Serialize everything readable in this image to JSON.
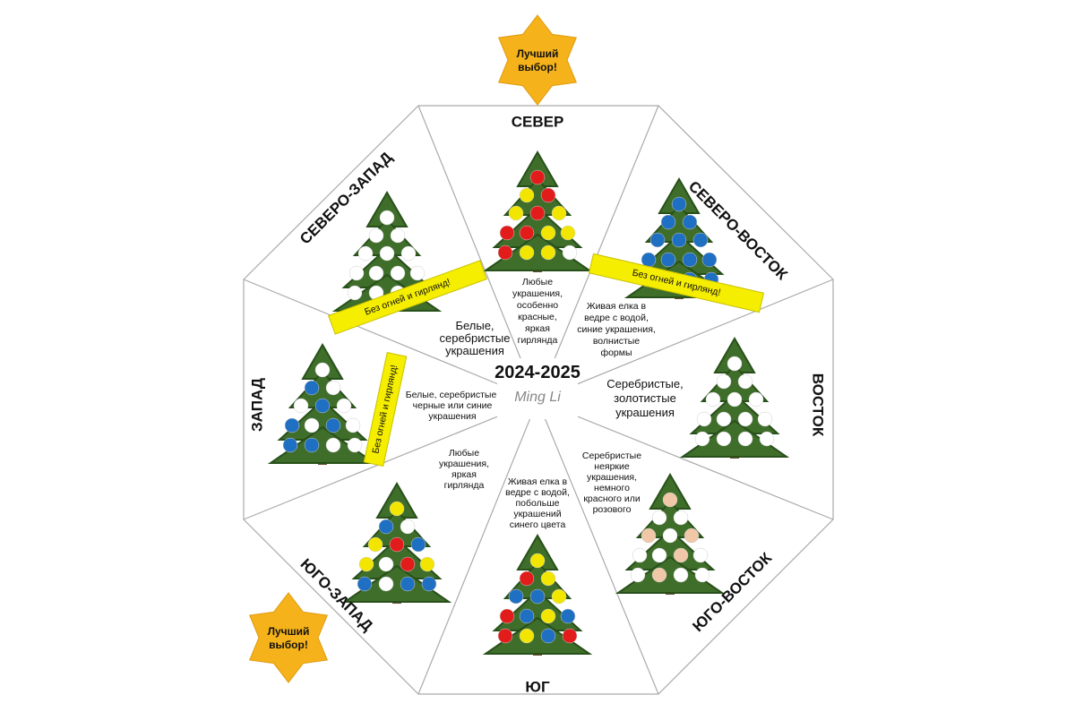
{
  "center": {
    "years": "2024-2025",
    "logo": "Ming Li"
  },
  "badges": [
    "Лучший выбор!",
    "Лучший выбор!"
  ],
  "banners": [
    "Без огней и гирлянд!",
    "Без огней и гирлянд!",
    "Без огней и гирлянд!"
  ],
  "sectors": [
    {
      "direction": "СЕВЕР",
      "description": [
        "Любые",
        "украшения,",
        "особенно",
        "красные,",
        "яркая",
        "гирлянда"
      ]
    },
    {
      "direction": "СЕВЕРО-ВОСТОК",
      "description": [
        "Живая елка в",
        "ведре с водой,",
        "синие украшения,",
        "волнистые",
        "формы"
      ]
    },
    {
      "direction": "ВОСТОК",
      "description": [
        "Серебристые,",
        "золотистые",
        "украшения"
      ]
    },
    {
      "direction": "ЮГО-ВОСТОК",
      "description": [
        "Серебристые",
        "неяркие",
        "украшения,",
        "немного",
        "красного или",
        "розового"
      ]
    },
    {
      "direction": "ЮГ",
      "description": [
        "Живая елка в",
        "ведре с водой,",
        "побольше",
        "украшений",
        "синего цвета"
      ]
    },
    {
      "direction": "ЮГО-ЗАПАД",
      "description": [
        "Любые",
        "украшения,",
        "яркая",
        "гирлянда"
      ]
    },
    {
      "direction": "ЗАПАД",
      "description": [
        "Белые, серебристые,",
        "черные или синие",
        "украшения"
      ]
    },
    {
      "direction": "СЕВЕРО-ЗАПАД",
      "description": [
        "Белые,",
        "серебристые",
        "украшения"
      ]
    }
  ]
}
